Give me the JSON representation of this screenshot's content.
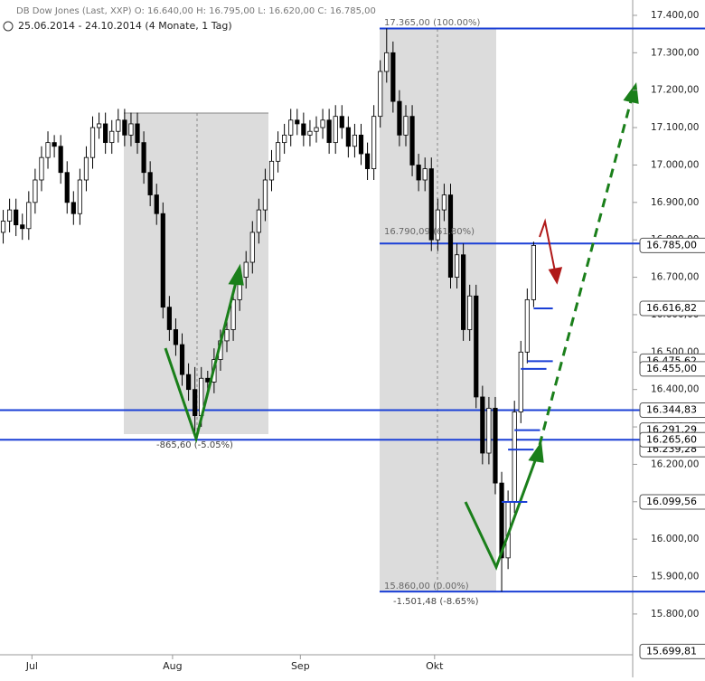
{
  "chart_data": {
    "type": "candlestick",
    "header": "DB Dow Jones (Last, XXP)  O: 16.640,00  H: 16.795,00  L: 16.620,00  C: 16.785,00",
    "period": "25.06.2014 - 24.10.2014 (4 Monate, 1 Tag)",
    "candles": [
      [
        16820,
        16880,
        16790,
        16850
      ],
      [
        16850,
        16910,
        16820,
        16880
      ],
      [
        16880,
        16910,
        16810,
        16840
      ],
      [
        16840,
        16870,
        16800,
        16830
      ],
      [
        16830,
        16930,
        16800,
        16900
      ],
      [
        16900,
        16990,
        16870,
        16960
      ],
      [
        16960,
        17050,
        16930,
        17020
      ],
      [
        17020,
        17090,
        16990,
        17060
      ],
      [
        17060,
        17080,
        17020,
        17050
      ],
      [
        17050,
        17080,
        16950,
        16980
      ],
      [
        16980,
        17010,
        16870,
        16900
      ],
      [
        16900,
        16930,
        16840,
        16870
      ],
      [
        16870,
        16990,
        16840,
        16960
      ],
      [
        16960,
        17050,
        16930,
        17020
      ],
      [
        17020,
        17130,
        16990,
        17100
      ],
      [
        17100,
        17140,
        17070,
        17110
      ],
      [
        17110,
        17140,
        17030,
        17060
      ],
      [
        17060,
        17120,
        17030,
        17090
      ],
      [
        17090,
        17150,
        17060,
        17120
      ],
      [
        17120,
        17150,
        17050,
        17080
      ],
      [
        17080,
        17140,
        17050,
        17110
      ],
      [
        17110,
        17140,
        17030,
        17060
      ],
      [
        17060,
        17090,
        16950,
        16980
      ],
      [
        16980,
        17010,
        16890,
        16920
      ],
      [
        16920,
        16950,
        16840,
        16870
      ],
      [
        16870,
        16900,
        16590,
        16620
      ],
      [
        16620,
        16650,
        16530,
        16560
      ],
      [
        16560,
        16590,
        16490,
        16520
      ],
      [
        16520,
        16550,
        16410,
        16440
      ],
      [
        16440,
        16470,
        16370,
        16400
      ],
      [
        16400,
        16460,
        16272.6,
        16330
      ],
      [
        16330,
        16460,
        16300,
        16430
      ],
      [
        16430,
        16450,
        16390,
        16420
      ],
      [
        16420,
        16510,
        16390,
        16480
      ],
      [
        16480,
        16560,
        16450,
        16530
      ],
      [
        16530,
        16590,
        16500,
        16560
      ],
      [
        16560,
        16670,
        16530,
        16640
      ],
      [
        16640,
        16730,
        16610,
        16700
      ],
      [
        16700,
        16770,
        16670,
        16740
      ],
      [
        16740,
        16850,
        16710,
        16820
      ],
      [
        16820,
        16910,
        16790,
        16880
      ],
      [
        16880,
        16990,
        16850,
        16960
      ],
      [
        16960,
        17040,
        16930,
        17010
      ],
      [
        17010,
        17090,
        16980,
        17060
      ],
      [
        17060,
        17110,
        17030,
        17080
      ],
      [
        17080,
        17150,
        17050,
        17120
      ],
      [
        17120,
        17150,
        17080,
        17110
      ],
      [
        17110,
        17140,
        17050,
        17080
      ],
      [
        17080,
        17120,
        17050,
        17090
      ],
      [
        17090,
        17130,
        17060,
        17100
      ],
      [
        17100,
        17150,
        17070,
        17120
      ],
      [
        17120,
        17150,
        17030,
        17060
      ],
      [
        17060,
        17160,
        17030,
        17130
      ],
      [
        17130,
        17160,
        17070,
        17100
      ],
      [
        17100,
        17130,
        17020,
        17050
      ],
      [
        17050,
        17110,
        17020,
        17080
      ],
      [
        17080,
        17110,
        17000,
        17030
      ],
      [
        17030,
        17060,
        16960,
        16990
      ],
      [
        16990,
        17160,
        16960,
        17130
      ],
      [
        17130,
        17280,
        17100,
        17250
      ],
      [
        17250,
        17365,
        17220,
        17300
      ],
      [
        17300,
        17330,
        17140,
        17170
      ],
      [
        17170,
        17200,
        17050,
        17080
      ],
      [
        17080,
        17160,
        17050,
        17130
      ],
      [
        17130,
        17160,
        16970,
        17000
      ],
      [
        17000,
        17030,
        16930,
        16960
      ],
      [
        16960,
        17020,
        16930,
        16990
      ],
      [
        16990,
        17020,
        16770,
        16800
      ],
      [
        16800,
        16910,
        16770,
        16880
      ],
      [
        16880,
        16950,
        16850,
        16920
      ],
      [
        16920,
        16950,
        16670,
        16700
      ],
      [
        16700,
        16790,
        16670,
        16760
      ],
      [
        16760,
        16790,
        16530,
        16560
      ],
      [
        16560,
        16680,
        16530,
        16650
      ],
      [
        16650,
        16680,
        16350,
        16380
      ],
      [
        16380,
        16410,
        16200,
        16230
      ],
      [
        16230,
        16380,
        16200,
        16350
      ],
      [
        16350,
        16380,
        16120,
        16150
      ],
      [
        16150,
        16180,
        15860,
        15950
      ],
      [
        15950,
        16130,
        15920,
        16100
      ],
      [
        16100,
        16370,
        16070,
        16340
      ],
      [
        16340,
        16530,
        16310,
        16500
      ],
      [
        16500,
        16670,
        16470,
        16640
      ],
      [
        16640,
        16795,
        16620,
        16785
      ]
    ],
    "xlim": [
      -0.5,
      98.5
    ],
    "xticks": [
      {
        "value": 4.5,
        "label": "Jul"
      },
      {
        "value": 26.5,
        "label": "Aug"
      },
      {
        "value": 46.5,
        "label": "Sep"
      },
      {
        "value": 67.5,
        "label": "Okt"
      }
    ],
    "ylim": [
      15691,
      17441
    ],
    "yticks": [
      {
        "value": 15800,
        "label": "15.800,00"
      },
      {
        "value": 15900,
        "label": "15.900,00"
      },
      {
        "value": 16000,
        "label": "16.000,00"
      },
      {
        "value": 16100,
        "label": "16.100,00"
      },
      {
        "value": 16200,
        "label": "16.200,00"
      },
      {
        "value": 16300,
        "label": "16.300,00"
      },
      {
        "value": 16400,
        "label": "16.400,00"
      },
      {
        "value": 16500,
        "label": "16.500,00"
      },
      {
        "value": 16600,
        "label": "16.600,00"
      },
      {
        "value": 16700,
        "label": "16.700,00"
      },
      {
        "value": 16800,
        "label": "16.800,00"
      },
      {
        "value": 16900,
        "label": "16.900,00"
      },
      {
        "value": 17000,
        "label": "17.000,00"
      },
      {
        "value": 17100,
        "label": "17.100,00"
      },
      {
        "value": 17200,
        "label": "17.200,00"
      },
      {
        "value": 17300,
        "label": "17.300,00"
      },
      {
        "value": 17400,
        "label": "17.400,00"
      }
    ],
    "hlines": [
      17365,
      16790.09,
      16344.83,
      16265.6,
      15860
    ],
    "line_color": "#1a3fd6",
    "price_markers": [
      {
        "value": 16785,
        "label": "16.785,00"
      },
      {
        "value": 16616.82,
        "label": "16.616,82"
      },
      {
        "value": 16475.62,
        "label": "16.475,62"
      },
      {
        "value": 16455,
        "label": "16.455,00"
      },
      {
        "value": 16344.83,
        "label": "16.344,83"
      },
      {
        "value": 16291.29,
        "label": "16.291,29"
      },
      {
        "value": 16239.28,
        "label": "16.239,28"
      },
      {
        "value": 16265.6,
        "label": "16.265,60"
      },
      {
        "value": 16099.56,
        "label": "16.099,56"
      },
      {
        "value": 15699.81,
        "label": "15.699,81"
      }
    ],
    "annotations": [
      "17.365,00 (100.00%)",
      "16.790,09 (61.80%)",
      "15.860,00 (0.00%)",
      "-1.501,48 (-8.65%)",
      "-865,60 (-5.05%)"
    ]
  }
}
